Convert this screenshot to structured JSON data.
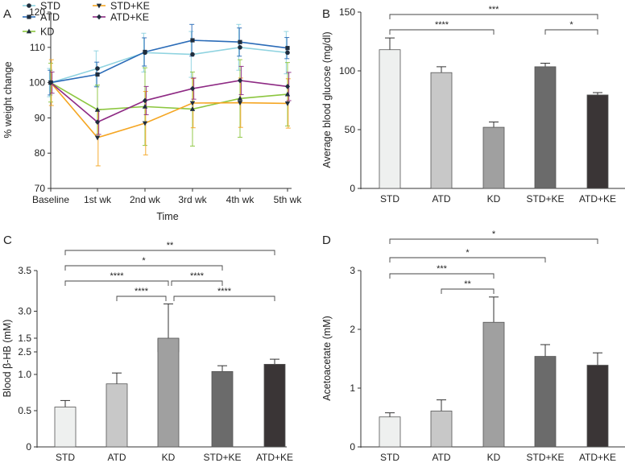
{
  "chart_data": [
    {
      "panel": "A",
      "type": "line",
      "xlabel": "Time",
      "ylabel": "% weight change",
      "ylim": [
        70,
        120
      ],
      "yticks": [
        70,
        80,
        90,
        100,
        110,
        120
      ],
      "categories": [
        "Baseline",
        "1st wk",
        "2nd wk",
        "3rd wk",
        "4th wk",
        "5th wk"
      ],
      "series": [
        {
          "name": "STD",
          "color": "#8fd3e0",
          "marker": "circle",
          "values": [
            100,
            104,
            108.5,
            108,
            110,
            108.5
          ],
          "errors": [
            4,
            5,
            5.5,
            6.5,
            6.5,
            6
          ]
        },
        {
          "name": "ATD",
          "color": "#2b6cb8",
          "marker": "square",
          "values": [
            100,
            102.3,
            108.7,
            112,
            111.5,
            109.8
          ],
          "errors": [
            3.5,
            3.5,
            4,
            4.5,
            4,
            3
          ]
        },
        {
          "name": "KD",
          "color": "#8cc63f",
          "marker": "triangle-up",
          "values": [
            100,
            92.3,
            93.2,
            92.5,
            95.5,
            96.7
          ],
          "errors": [
            5.5,
            7,
            11,
            10.5,
            11,
            9
          ]
        },
        {
          "name": "STD+KE",
          "color": "#f5a623",
          "marker": "triangle-down",
          "values": [
            100,
            84.4,
            88.5,
            94.2,
            94.3,
            94.1
          ],
          "errors": [
            6.5,
            8,
            9,
            7,
            7,
            7
          ]
        },
        {
          "name": "ATD+KE",
          "color": "#8e2a84",
          "marker": "diamond",
          "values": [
            100,
            88.8,
            94.9,
            98.3,
            100.6,
            98.9
          ],
          "errors": [
            3,
            3.5,
            4,
            3,
            4,
            4
          ]
        }
      ]
    },
    {
      "panel": "B",
      "type": "bar",
      "ylabel": "Average blood glucose (mg/dl)",
      "ylim": [
        0,
        150
      ],
      "yticks": [
        0,
        50,
        100,
        150
      ],
      "categories": [
        "STD",
        "ATD",
        "KD",
        "STD+KE",
        "ATD+KE"
      ],
      "values": [
        118,
        98.5,
        52,
        103.5,
        79.5
      ],
      "errors": [
        10,
        5,
        4.5,
        3,
        2
      ],
      "colors": [
        "#eef0ef",
        "#c8c8c8",
        "#a0a0a0",
        "#6b6b6b",
        "#3a3536"
      ],
      "significance": [
        {
          "from": 0,
          "to": 4,
          "label": "***"
        },
        {
          "from": 0,
          "to": 2,
          "label": "****"
        },
        {
          "from": 3,
          "to": 4,
          "label": "*"
        }
      ]
    },
    {
      "panel": "C",
      "type": "bar",
      "ylabel": "Blood β-HB (mM)",
      "axis_break": [
        1.5,
        2.5
      ],
      "ylim": [
        0,
        3.5
      ],
      "yticks_lower": [
        0,
        0.5,
        1.0,
        1.5
      ],
      "yticks_upper": [
        2.5,
        3.0,
        3.5
      ],
      "categories": [
        "STD",
        "ATD",
        "KD",
        "STD+KE",
        "ATD+KE"
      ],
      "values": [
        0.55,
        0.87,
        2.66,
        1.04,
        1.14
      ],
      "errors": [
        0.09,
        0.15,
        0.43,
        0.08,
        0.07
      ],
      "colors": [
        "#eef0ef",
        "#c8c8c8",
        "#a0a0a0",
        "#6b6b6b",
        "#3a3536"
      ],
      "significance": [
        {
          "from": 0,
          "to": 4,
          "label": "**"
        },
        {
          "from": 0,
          "to": 3,
          "label": "*"
        },
        {
          "from": 0,
          "to": 2,
          "label": "****"
        },
        {
          "from": 2,
          "to": 3,
          "label": "****"
        },
        {
          "from": 1,
          "to": 2,
          "label": "****"
        },
        {
          "from": 2,
          "to": 4,
          "label": "****"
        }
      ]
    },
    {
      "panel": "D",
      "type": "bar",
      "ylabel": "Acetoacetate (mM)",
      "ylim": [
        0,
        3
      ],
      "yticks": [
        0,
        1,
        2,
        3
      ],
      "categories": [
        "STD",
        "ATD",
        "KD",
        "STD+KE",
        "ATD+KE"
      ],
      "values": [
        0.51,
        0.61,
        2.12,
        1.54,
        1.39
      ],
      "errors": [
        0.07,
        0.19,
        0.43,
        0.2,
        0.21
      ],
      "colors": [
        "#eef0ef",
        "#c8c8c8",
        "#a0a0a0",
        "#6b6b6b",
        "#3a3536"
      ],
      "significance": [
        {
          "from": 0,
          "to": 4,
          "label": "*"
        },
        {
          "from": 0,
          "to": 3,
          "label": "*"
        },
        {
          "from": 0,
          "to": 2,
          "label": "***"
        },
        {
          "from": 1,
          "to": 2,
          "label": "**"
        }
      ]
    }
  ]
}
